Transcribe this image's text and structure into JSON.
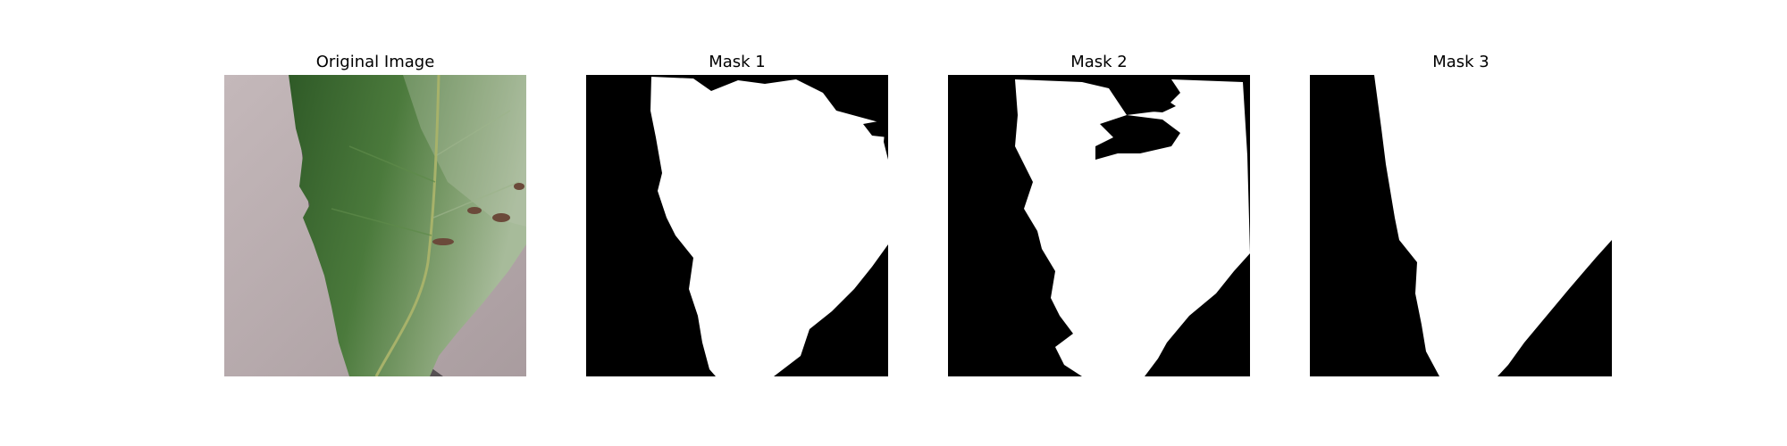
{
  "panels": [
    {
      "title": "Original Image",
      "kind": "photo"
    },
    {
      "title": "Mask 1",
      "kind": "mask"
    },
    {
      "title": "Mask 2",
      "kind": "mask"
    },
    {
      "title": "Mask 3",
      "kind": "mask"
    }
  ],
  "colors": {
    "background": "#ffffff",
    "mask_background": "#000000",
    "mask_foreground": "#ffffff",
    "pavement": "#b7aaad",
    "leaf_dark": "#3f6b32",
    "leaf_light": "#8aa579",
    "leaf_vein": "#a7b26a",
    "leaf_spot": "#6b4a3a"
  }
}
